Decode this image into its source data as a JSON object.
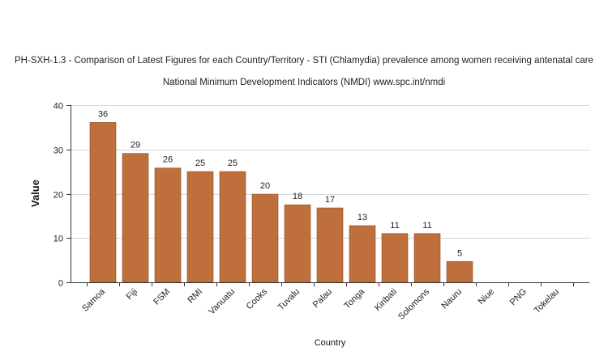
{
  "chart_data": {
    "type": "bar",
    "title": "PH-SXH-1.3 - Comparison of Latest Figures for each Country/Territory - STI (Chlamydia) prevalence among women receiving antenatal care",
    "subtitle": "National Minimum Development Indicators (NMDI) www.spc.int/nmdi",
    "xlabel": "Country",
    "ylabel": "Value",
    "ylim": [
      0,
      40
    ],
    "yticks": [
      0,
      10,
      20,
      30,
      40
    ],
    "grid": true,
    "bar_color": "#bf6f3b",
    "categories": [
      "Samoa",
      "Fiji",
      "FSM",
      "RMI",
      "Vanuatu",
      "Cooks",
      "Tuvalu",
      "Palau",
      "Tonga",
      "Kiribati",
      "Solomons",
      "Nauru",
      "Niue",
      "PNG",
      "Tokelau"
    ],
    "values": [
      36.1,
      29.1,
      25.8,
      25.0,
      25.0,
      19.9,
      17.5,
      16.8,
      12.8,
      11.0,
      11.0,
      4.7,
      null,
      null,
      null
    ],
    "data_labels": [
      "36",
      "29",
      "26",
      "25",
      "25",
      "20",
      "18",
      "17",
      "13",
      "11",
      "11",
      "5",
      "",
      "",
      ""
    ]
  }
}
